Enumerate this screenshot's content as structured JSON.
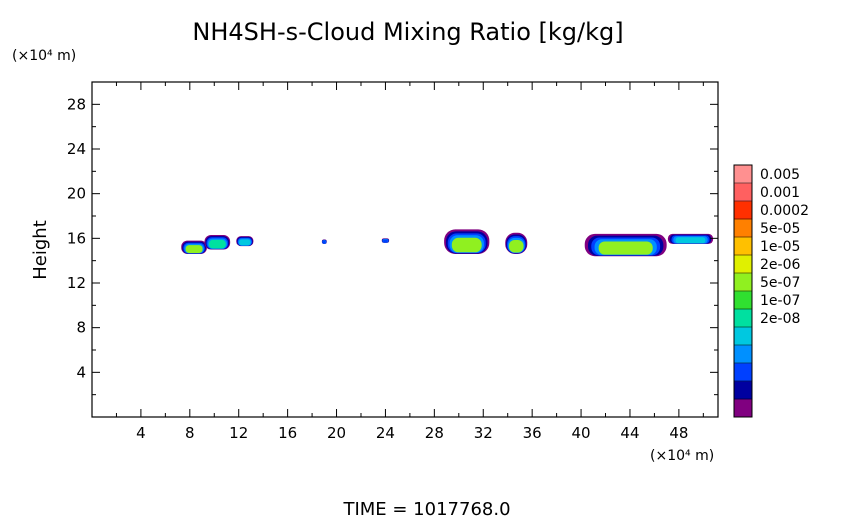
{
  "chart_data": {
    "type": "heatmap",
    "title": "NH4SH-s-Cloud Mixing Ratio [kg/kg]",
    "ylabel": "Height",
    "x_unit": "(×10⁴ m)",
    "y_unit": "(×10⁴ m)",
    "time_label": "TIME  =  1017768.0",
    "xlim": [
      0,
      51.2
    ],
    "ylim": [
      0,
      30
    ],
    "x_ticks": [
      4,
      8,
      12,
      16,
      20,
      24,
      28,
      32,
      36,
      40,
      44,
      48
    ],
    "y_ticks": [
      4,
      8,
      12,
      16,
      20,
      24,
      28
    ],
    "colorbar": {
      "labels": [
        "0.005",
        "0.001",
        "0.0002",
        "5e-05",
        "1e-05",
        "2e-06",
        "5e-07",
        "1e-07",
        "2e-08"
      ],
      "colors": [
        "#800080",
        "#0000a0",
        "#0040ff",
        "#0090ff",
        "#00c8e0",
        "#00e0a0",
        "#30e030",
        "#90f020",
        "#e0f000",
        "#ffc000",
        "#ff8000",
        "#ff3000",
        "#ff6060",
        "#ff9090"
      ]
    },
    "cloud_blobs": [
      {
        "x0": 7.3,
        "x1": 9.4,
        "y_top": 15.8,
        "y_bot": 14.6,
        "core": "#90f020"
      },
      {
        "x0": 9.2,
        "x1": 11.3,
        "y_top": 16.3,
        "y_bot": 15.0,
        "core": "#00e0a0"
      },
      {
        "x0": 11.8,
        "x1": 13.2,
        "y_top": 16.2,
        "y_bot": 15.3,
        "core": "#00c8e0"
      },
      {
        "x0": 18.8,
        "x1": 19.2,
        "y_top": 15.9,
        "y_bot": 15.5,
        "core": "#0040ff"
      },
      {
        "x0": 23.7,
        "x1": 24.3,
        "y_top": 16.0,
        "y_bot": 15.6,
        "core": "#0040ff"
      },
      {
        "x0": 28.8,
        "x1": 32.5,
        "y_top": 16.8,
        "y_bot": 14.6,
        "core": "#90f020"
      },
      {
        "x0": 33.8,
        "x1": 35.6,
        "y_top": 16.5,
        "y_bot": 14.6,
        "core": "#90f020"
      },
      {
        "x0": 40.3,
        "x1": 47.0,
        "y_top": 16.4,
        "y_bot": 14.4,
        "core": "#90f020"
      },
      {
        "x0": 47.1,
        "x1": 50.8,
        "y_top": 16.4,
        "y_bot": 15.5,
        "core": "#00c8e0"
      }
    ]
  }
}
